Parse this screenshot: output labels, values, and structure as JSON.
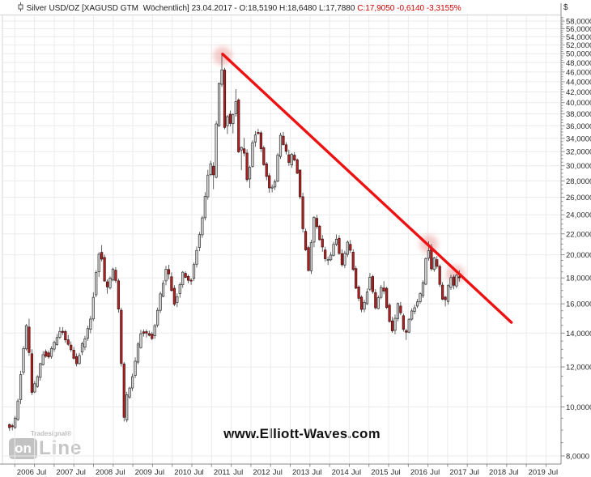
{
  "header": {
    "left_text": "Silver USD/OZ [XAGUSD GTM  Wöchentlich] 23.04.2017 - O:18,5190 H:18,6480 L:17,7880 ",
    "close_text": "C:17,9050 -0,6140 -3,3155%"
  },
  "watermark": {
    "text": "www.Elliott-Waves.com"
  },
  "logo": {
    "top_text": "Tradesignal®",
    "box_text": "on",
    "line_text": "Line"
  },
  "y_axis": {
    "currency": "$",
    "ticks": [
      {
        "value": 58,
        "label": "58,0000"
      },
      {
        "value": 56,
        "label": "56,0000"
      },
      {
        "value": 54,
        "label": "54,0000"
      },
      {
        "value": 52,
        "label": "52,0000"
      },
      {
        "value": 50,
        "label": "50,0000"
      },
      {
        "value": 48,
        "label": "48,0000"
      },
      {
        "value": 46,
        "label": "46,0000"
      },
      {
        "value": 44,
        "label": "44,0000"
      },
      {
        "value": 42,
        "label": "42,0000"
      },
      {
        "value": 40,
        "label": "40,0000"
      },
      {
        "value": 38,
        "label": "38,0000"
      },
      {
        "value": 36,
        "label": "36,0000"
      },
      {
        "value": 34,
        "label": "34,0000"
      },
      {
        "value": 32,
        "label": "32,0000"
      },
      {
        "value": 30,
        "label": "30,0000"
      },
      {
        "value": 28,
        "label": "28,0000"
      },
      {
        "value": 26,
        "label": "26,0000"
      },
      {
        "value": 24,
        "label": "24,0000"
      },
      {
        "value": 22,
        "label": "22,0000"
      },
      {
        "value": 20,
        "label": "20,0000"
      },
      {
        "value": 18,
        "label": "18,0000"
      },
      {
        "value": 16,
        "label": "16,0000"
      },
      {
        "value": 14,
        "label": "14,0000"
      },
      {
        "value": 12,
        "label": "12,0000"
      },
      {
        "value": 10,
        "label": "10,0000"
      },
      {
        "value": 8,
        "label": "8,0000"
      }
    ]
  },
  "x_axis": {
    "ticks": [
      {
        "t": 2006,
        "label": "2006"
      },
      {
        "t": 2006.5,
        "label": "Jul"
      },
      {
        "t": 2007,
        "label": "2007"
      },
      {
        "t": 2007.5,
        "label": "Jul"
      },
      {
        "t": 2008,
        "label": "2008"
      },
      {
        "t": 2008.5,
        "label": "Jul"
      },
      {
        "t": 2009,
        "label": "2009"
      },
      {
        "t": 2009.5,
        "label": "Jul"
      },
      {
        "t": 2010,
        "label": "2010"
      },
      {
        "t": 2010.5,
        "label": "Jul"
      },
      {
        "t": 2011,
        "label": "2011"
      },
      {
        "t": 2011.5,
        "label": "Jul"
      },
      {
        "t": 2012,
        "label": "2012"
      },
      {
        "t": 2012.5,
        "label": "Jul"
      },
      {
        "t": 2013,
        "label": "2013"
      },
      {
        "t": 2013.5,
        "label": "Jul"
      },
      {
        "t": 2014,
        "label": "2014"
      },
      {
        "t": 2014.5,
        "label": "Jul"
      },
      {
        "t": 2015,
        "label": "2015"
      },
      {
        "t": 2015.5,
        "label": "Jul"
      },
      {
        "t": 2016,
        "label": "2016"
      },
      {
        "t": 2016.5,
        "label": "Jul"
      },
      {
        "t": 2017,
        "label": "2017"
      },
      {
        "t": 2017.5,
        "label": "Jul"
      },
      {
        "t": 2018,
        "label": "2018"
      },
      {
        "t": 2018.5,
        "label": "Jul"
      },
      {
        "t": 2019,
        "label": "2019"
      },
      {
        "t": 2019.5,
        "label": "Jul"
      }
    ]
  },
  "chart_data": {
    "type": "candlestick",
    "title": "Silver USD/OZ [XAGUSD GTM Wöchentlich]",
    "instrument": "Silver USD/OZ",
    "symbol": "XAGUSD GTM",
    "timeframe": "Wöchentlich (weekly)",
    "currency": "$",
    "y_scale": "log",
    "grid": true,
    "x_domain": [
      2005.685,
      2019.882
    ],
    "y_domain": [
      7.71,
      59.63
    ],
    "y_tick_step": 2,
    "y_tick_range": [
      8,
      58
    ],
    "last_bar": {
      "date": "23.04.2017",
      "open": 18.519,
      "high": 18.648,
      "low": 17.788,
      "close": 17.905,
      "change": -0.614,
      "change_pct": -3.3155
    },
    "price_path": [
      [
        2005.83,
        9.2
      ],
      [
        2006.0,
        9.1
      ],
      [
        2006.1,
        10.0
      ],
      [
        2006.35,
        14.9
      ],
      [
        2006.45,
        10.6
      ],
      [
        2006.6,
        11.3
      ],
      [
        2006.75,
        12.8
      ],
      [
        2006.9,
        12.6
      ],
      [
        2007.05,
        13.4
      ],
      [
        2007.2,
        14.3
      ],
      [
        2007.45,
        13.0
      ],
      [
        2007.6,
        12.2
      ],
      [
        2007.8,
        13.6
      ],
      [
        2007.95,
        14.6
      ],
      [
        2008.2,
        20.8
      ],
      [
        2008.35,
        16.8
      ],
      [
        2008.55,
        18.8
      ],
      [
        2008.65,
        16.5
      ],
      [
        2008.8,
        9.3
      ],
      [
        2008.87,
        10.4
      ],
      [
        2009.0,
        11.2
      ],
      [
        2009.15,
        13.0
      ],
      [
        2009.25,
        14.2
      ],
      [
        2009.4,
        13.9
      ],
      [
        2009.55,
        13.7
      ],
      [
        2009.7,
        16.2
      ],
      [
        2009.9,
        18.9
      ],
      [
        2010.1,
        15.9
      ],
      [
        2010.3,
        18.4
      ],
      [
        2010.5,
        17.6
      ],
      [
        2010.6,
        19.3
      ],
      [
        2010.8,
        23.5
      ],
      [
        2010.95,
        29.3
      ],
      [
        2011.0,
        30.7
      ],
      [
        2011.07,
        27.2
      ],
      [
        2011.22,
        43.0
      ],
      [
        2011.28,
        49.8
      ],
      [
        2011.32,
        42.0
      ],
      [
        2011.38,
        34.5
      ],
      [
        2011.45,
        38.2
      ],
      [
        2011.55,
        34.8
      ],
      [
        2011.63,
        42.8
      ],
      [
        2011.75,
        29.0
      ],
      [
        2011.82,
        34.3
      ],
      [
        2011.95,
        27.3
      ],
      [
        2012.1,
        34.2
      ],
      [
        2012.2,
        35.4
      ],
      [
        2012.35,
        30.5
      ],
      [
        2012.5,
        26.9
      ],
      [
        2012.65,
        28.0
      ],
      [
        2012.78,
        34.6
      ],
      [
        2012.9,
        32.5
      ],
      [
        2013.0,
        30.2
      ],
      [
        2013.1,
        31.9
      ],
      [
        2013.25,
        28.3
      ],
      [
        2013.35,
        22.5
      ],
      [
        2013.5,
        18.6
      ],
      [
        2013.65,
        23.9
      ],
      [
        2013.8,
        21.3
      ],
      [
        2013.95,
        19.3
      ],
      [
        2014.1,
        20.2
      ],
      [
        2014.18,
        21.9
      ],
      [
        2014.35,
        19.1
      ],
      [
        2014.52,
        21.4
      ],
      [
        2014.7,
        17.3
      ],
      [
        2014.85,
        15.5
      ],
      [
        2014.95,
        16.2
      ],
      [
        2015.05,
        18.3
      ],
      [
        2015.2,
        15.7
      ],
      [
        2015.38,
        17.6
      ],
      [
        2015.5,
        15.6
      ],
      [
        2015.62,
        14.0
      ],
      [
        2015.78,
        16.1
      ],
      [
        2015.95,
        13.7
      ],
      [
        2016.1,
        15.4
      ],
      [
        2016.3,
        16.2
      ],
      [
        2016.4,
        17.3
      ],
      [
        2016.53,
        21.1
      ],
      [
        2016.62,
        18.7
      ],
      [
        2016.72,
        19.9
      ],
      [
        2016.85,
        17.2
      ],
      [
        2016.95,
        15.9
      ],
      [
        2017.05,
        17.3
      ],
      [
        2017.12,
        18.0
      ],
      [
        2017.2,
        17.2
      ],
      [
        2017.28,
        18.5
      ],
      [
        2017.31,
        17.9
      ]
    ],
    "bar_step_years": 0.071,
    "trendline": {
      "from": [
        2011.28,
        49.9
      ],
      "to": [
        2018.62,
        14.7
      ],
      "color": "#ee1111"
    },
    "touch_circles": [
      {
        "t": 2011.28,
        "value": 49.5
      },
      {
        "t": 2016.52,
        "value": 21.0
      },
      {
        "t": 2017.2,
        "value": 18.3
      }
    ],
    "colors": {
      "up_fill": "#d6d6d6",
      "up_stroke": "#2f2f2f",
      "down_fill": "#b32323",
      "down_stroke": "#401010",
      "wick": "#3c3c3c",
      "grid": "#ebebeb",
      "axis": "#8a8a8a",
      "border": "#d4d4d4",
      "circle": "#efabab",
      "tick_text": "#2b2b2b"
    }
  }
}
